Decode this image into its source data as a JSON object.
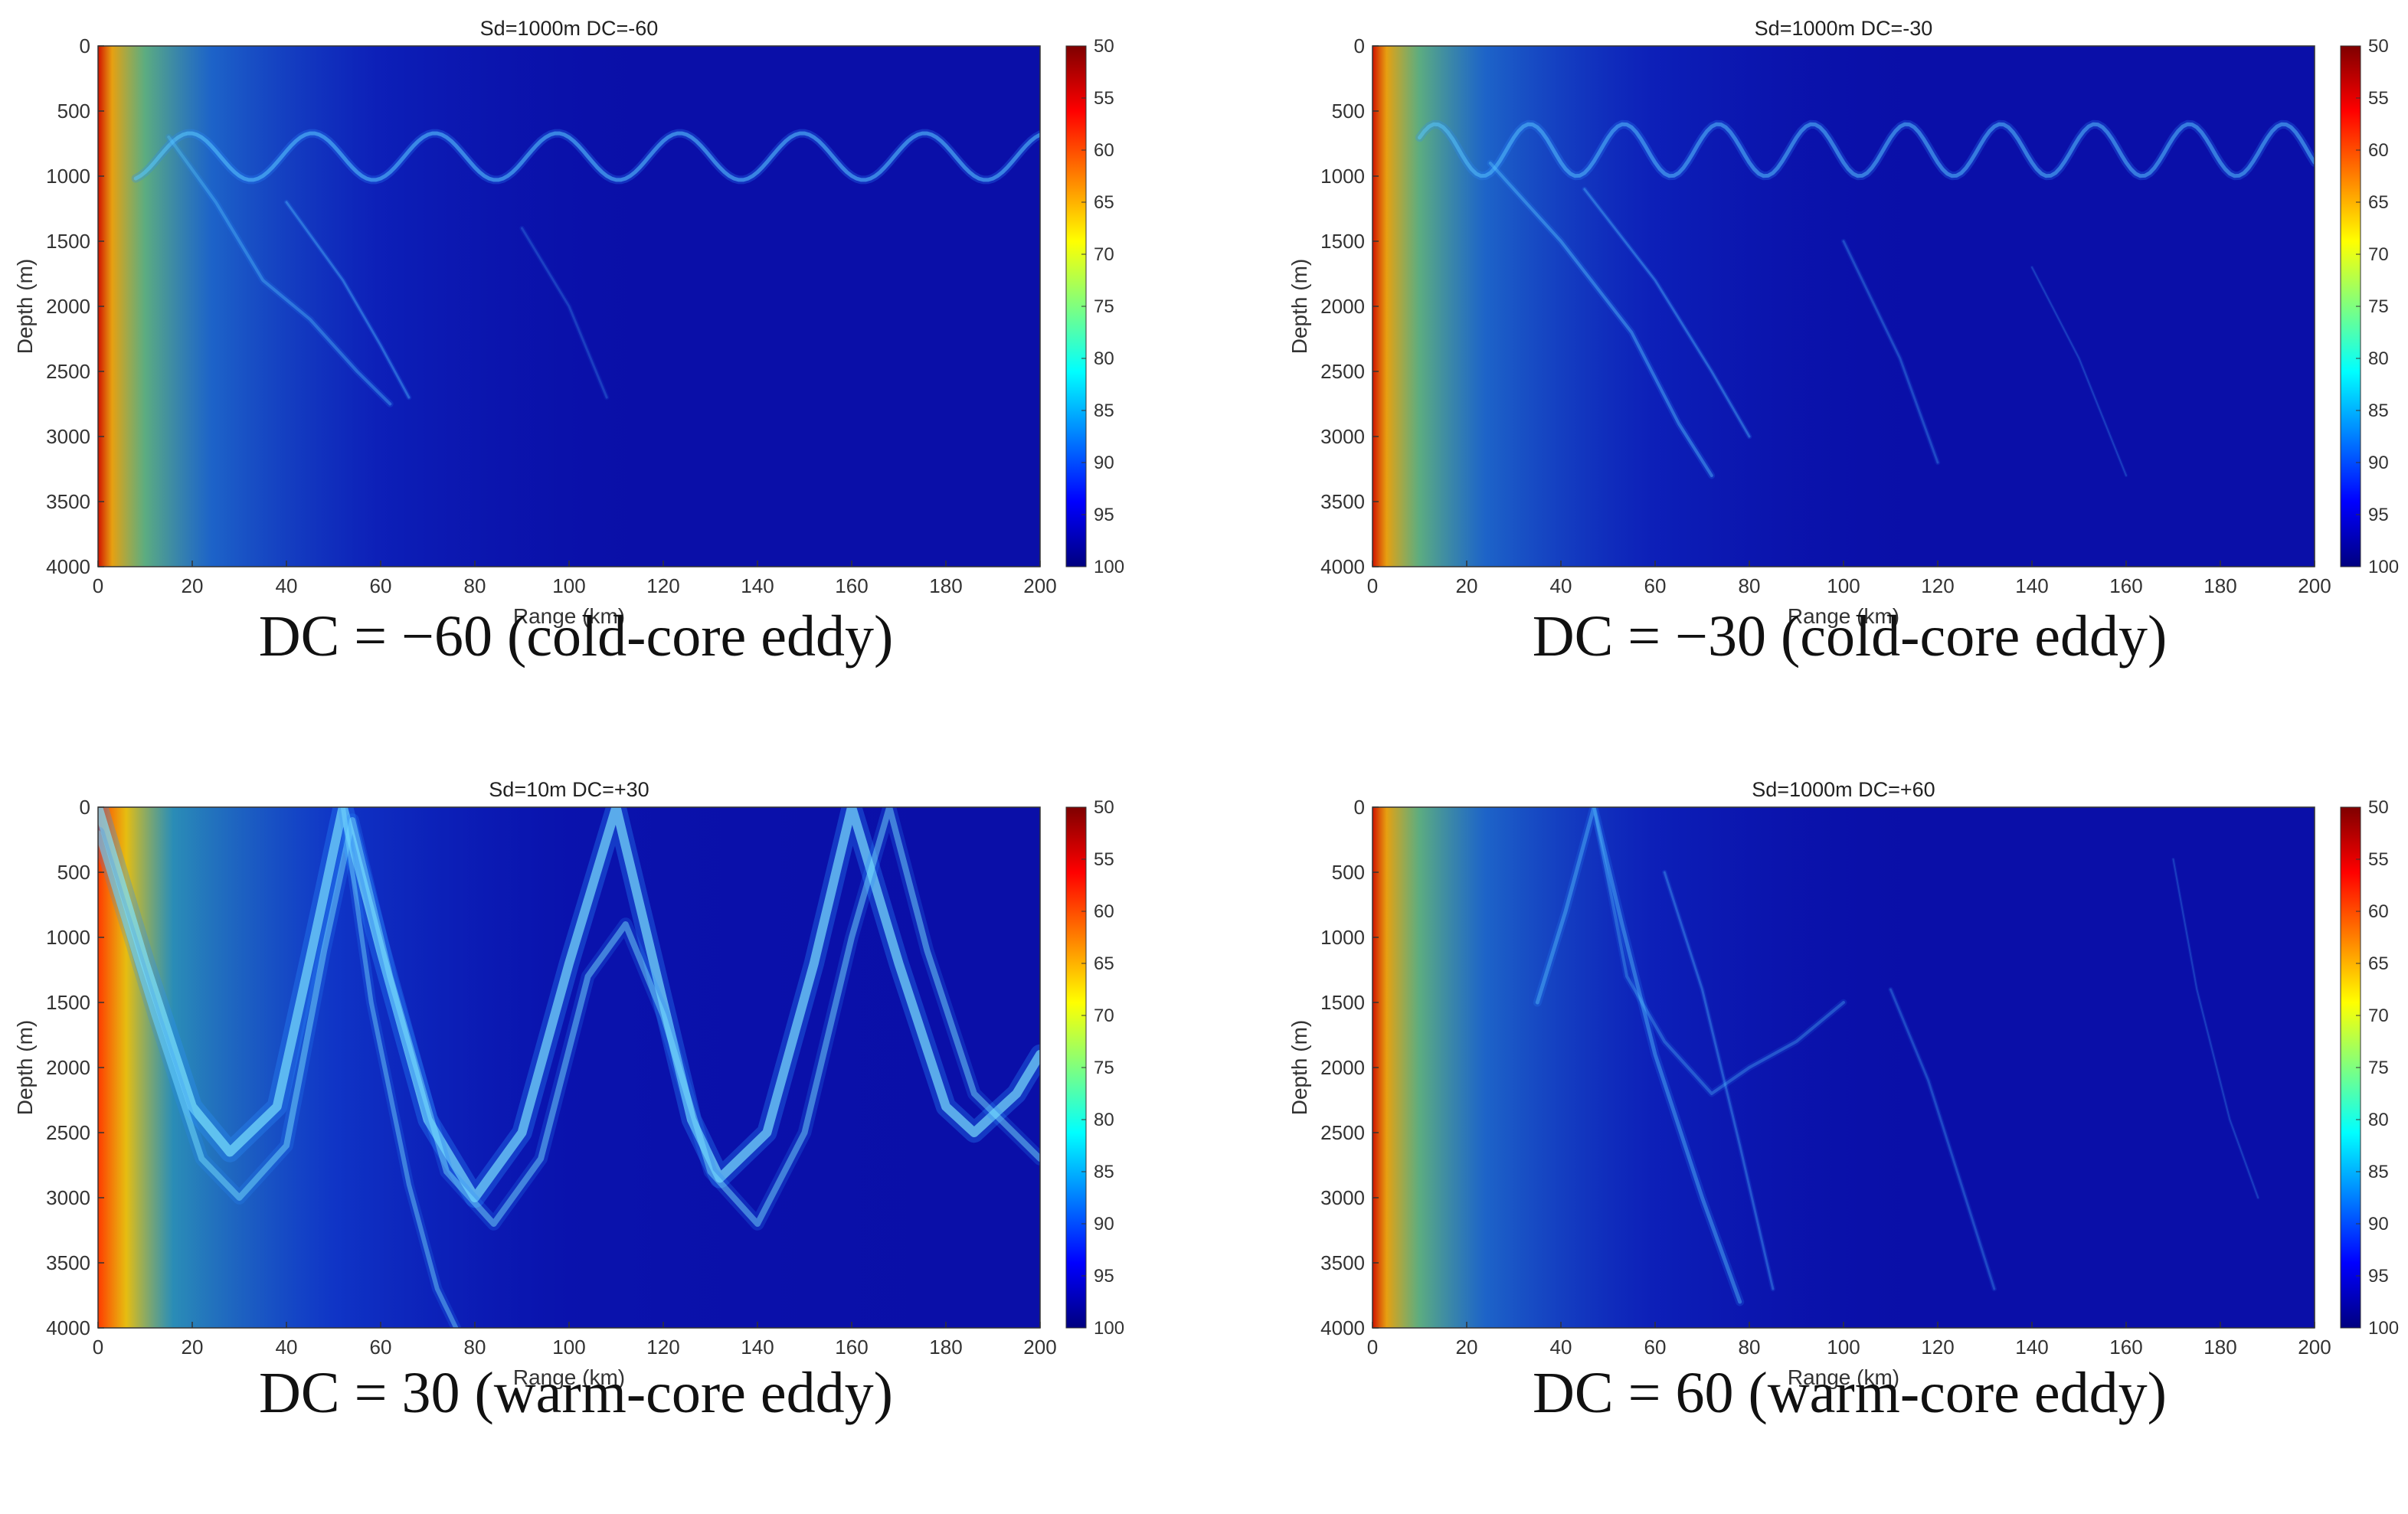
{
  "figure": {
    "colormap": [
      "#00007f",
      "#0000ff",
      "#007fff",
      "#00ffff",
      "#7fff7f",
      "#ffff00",
      "#ff7f00",
      "#ff0000",
      "#7f0000"
    ],
    "background_color": "#0a0fa8"
  },
  "chart_data": [
    {
      "type": "heatmap",
      "title": "Sd=1000m   DC=-60",
      "caption": "DC = −60 (cold-core eddy)",
      "xlabel": "Range (km)",
      "ylabel": "Depth (m)",
      "xlim": [
        0,
        200
      ],
      "ylim": [
        4000,
        0
      ],
      "xticks": [
        "0",
        "20",
        "40",
        "60",
        "80",
        "100",
        "120",
        "140",
        "160",
        "180",
        "200"
      ],
      "yticks": [
        "0",
        "500",
        "1000",
        "1500",
        "2000",
        "2500",
        "3000",
        "3500",
        "4000"
      ],
      "colorbar": {
        "min": 50,
        "max": 100,
        "reversed": true,
        "ticks": [
          "50",
          "55",
          "60",
          "65",
          "70",
          "75",
          "80",
          "85",
          "90",
          "95",
          "100"
        ]
      },
      "source_depth_m": 1000,
      "pattern": "near-axis ducted convergence oscillating around 700–1000 m depth with weak deep branches"
    },
    {
      "type": "heatmap",
      "title": "Sd=1000m   DC=-30",
      "caption": "DC = −30 (cold-core eddy)",
      "xlabel": "Range (km)",
      "ylabel": "Depth (m)",
      "xlim": [
        0,
        200
      ],
      "ylim": [
        4000,
        0
      ],
      "xticks": [
        "0",
        "20",
        "40",
        "60",
        "80",
        "100",
        "120",
        "140",
        "160",
        "180",
        "200"
      ],
      "yticks": [
        "0",
        "500",
        "1000",
        "1500",
        "2000",
        "2500",
        "3000",
        "3500",
        "4000"
      ],
      "colorbar": {
        "min": 50,
        "max": 100,
        "reversed": true,
        "ticks": [
          "50",
          "55",
          "60",
          "65",
          "70",
          "75",
          "80",
          "85",
          "90",
          "95",
          "100"
        ]
      },
      "source_depth_m": 1000,
      "pattern": "ducted oscillation around 500–1000 m with deeper rays reaching ~3300 m"
    },
    {
      "type": "heatmap",
      "title": "Sd=10m   DC=+30",
      "caption": "DC = 30 (warm-core eddy)",
      "xlabel": "Range (km)",
      "ylabel": "Depth (m)",
      "xlim": [
        0,
        200
      ],
      "ylim": [
        4000,
        0
      ],
      "xticks": [
        "0",
        "20",
        "40",
        "60",
        "80",
        "100",
        "120",
        "140",
        "160",
        "180",
        "200"
      ],
      "yticks": [
        "0",
        "500",
        "1000",
        "1500",
        "2000",
        "2500",
        "3000",
        "3500",
        "4000"
      ],
      "colorbar": {
        "min": 50,
        "max": 100,
        "reversed": true,
        "ticks": [
          "50",
          "55",
          "60",
          "65",
          "70",
          "75",
          "80",
          "85",
          "90",
          "95",
          "100"
        ]
      },
      "source_depth_m": 10,
      "pattern": "large-amplitude convergence zones, surface convergence near 52 km, 110 km, 160–168 km"
    },
    {
      "type": "heatmap",
      "title": "Sd=1000m   DC=+60",
      "caption": "DC = 60 (warm-core eddy)",
      "xlabel": "Range (km)",
      "ylabel": "Depth (m)",
      "xlim": [
        0,
        200
      ],
      "ylim": [
        4000,
        0
      ],
      "xticks": [
        "0",
        "20",
        "40",
        "60",
        "80",
        "100",
        "120",
        "140",
        "160",
        "180",
        "200"
      ],
      "yticks": [
        "0",
        "500",
        "1000",
        "1500",
        "2000",
        "2500",
        "3000",
        "3500",
        "4000"
      ],
      "colorbar": {
        "min": 50,
        "max": 100,
        "reversed": true,
        "ticks": [
          "50",
          "55",
          "60",
          "65",
          "70",
          "75",
          "80",
          "85",
          "90",
          "95",
          "100"
        ]
      },
      "source_depth_m": 1000,
      "pattern": "diffuse crossing ray paths, surface convergence near 47 km, deep branches to ~3800 m"
    }
  ]
}
